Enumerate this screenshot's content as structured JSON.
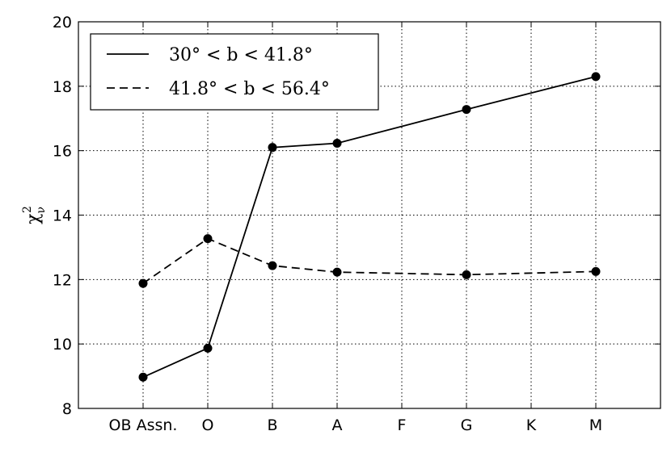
{
  "chart_data": {
    "type": "line",
    "ylabel": {
      "base": "χ",
      "sub": "ν",
      "sup": "2"
    },
    "xlim": [
      -1,
      8
    ],
    "xticks": [
      {
        "value": 0,
        "label": "OB Assn."
      },
      {
        "value": 1,
        "label": "O"
      },
      {
        "value": 2,
        "label": "B"
      },
      {
        "value": 3,
        "label": "A"
      },
      {
        "value": 4,
        "label": "F"
      },
      {
        "value": 5,
        "label": "G"
      },
      {
        "value": 6,
        "label": "K"
      },
      {
        "value": 7,
        "label": "M"
      }
    ],
    "ylim": [
      8,
      20
    ],
    "yticks": [
      8,
      10,
      12,
      14,
      16,
      18,
      20
    ],
    "grid": true,
    "legend": "upper left",
    "series": [
      {
        "name": "30° < b < 41.8°",
        "color": "#000000",
        "dash": "solid",
        "x": [
          0,
          1,
          2,
          3,
          5,
          7
        ],
        "values": [
          8.97,
          9.87,
          16.1,
          16.23,
          17.28,
          18.3
        ]
      },
      {
        "name": "41.8° < b < 56.4°",
        "color": "#000000",
        "dash": "dashed",
        "x": [
          0,
          1,
          2,
          3,
          5,
          7
        ],
        "values": [
          11.88,
          13.27,
          12.43,
          12.23,
          12.15,
          12.25
        ]
      }
    ]
  }
}
